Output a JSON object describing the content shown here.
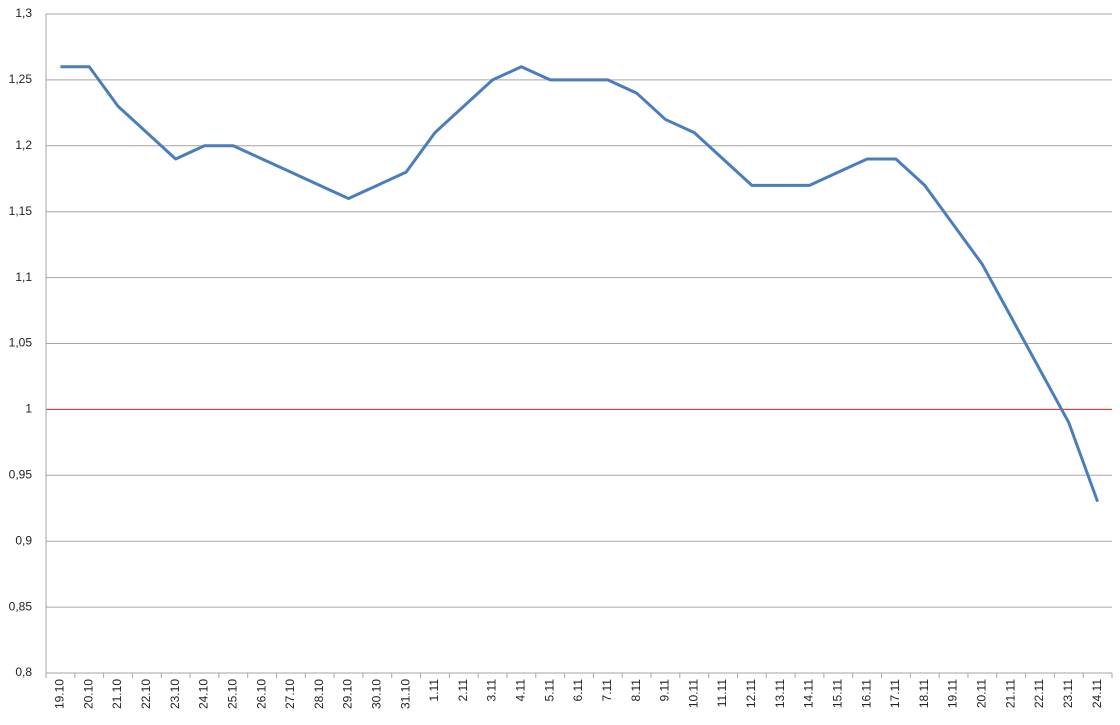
{
  "chart_data": {
    "type": "line",
    "categories": [
      "19.10",
      "20.10",
      "21.10",
      "22.10",
      "23.10",
      "24.10",
      "25.10",
      "26.10",
      "27.10",
      "28.10",
      "29.10",
      "30.10",
      "31.10",
      "1.11",
      "2.11",
      "3.11",
      "4.11",
      "5.11",
      "6.11",
      "7.11",
      "8.11",
      "9.11",
      "10.11",
      "11.11",
      "12.11",
      "13.11",
      "14.11",
      "15.11",
      "16.11",
      "17.11",
      "18.11",
      "19.11",
      "20.11",
      "21.11",
      "22.11",
      "23.11",
      "24.11"
    ],
    "series": [
      {
        "color": "#4a7ebb",
        "values": [
          1.26,
          1.26,
          1.23,
          1.21,
          1.19,
          1.2,
          1.2,
          1.19,
          1.18,
          1.17,
          1.16,
          1.17,
          1.18,
          1.21,
          1.23,
          1.25,
          1.26,
          1.25,
          1.25,
          1.25,
          1.24,
          1.22,
          1.21,
          1.19,
          1.17,
          1.17,
          1.17,
          1.18,
          1.19,
          1.19,
          1.17,
          1.14,
          1.11,
          1.07,
          1.03,
          0.99,
          0.93
        ]
      }
    ],
    "ylim": [
      0.8,
      1.3
    ],
    "yticks": [
      {
        "value": 0.8,
        "label": "0,8"
      },
      {
        "value": 0.85,
        "label": "0,85"
      },
      {
        "value": 0.9,
        "label": "0,9"
      },
      {
        "value": 0.95,
        "label": "0,95"
      },
      1,
      {
        "value": 1.05,
        "label": "1,05"
      },
      {
        "value": 1.1,
        "label": "1,1"
      },
      {
        "value": 1.15,
        "label": "1,15"
      },
      {
        "value": 1.2,
        "label": "1,2"
      },
      {
        "value": 1.25,
        "label": "1,25"
      },
      {
        "value": 1.3,
        "label": "1,3"
      }
    ],
    "grid": true,
    "reference_line": {
      "value": 1,
      "color": "#e03030"
    }
  }
}
